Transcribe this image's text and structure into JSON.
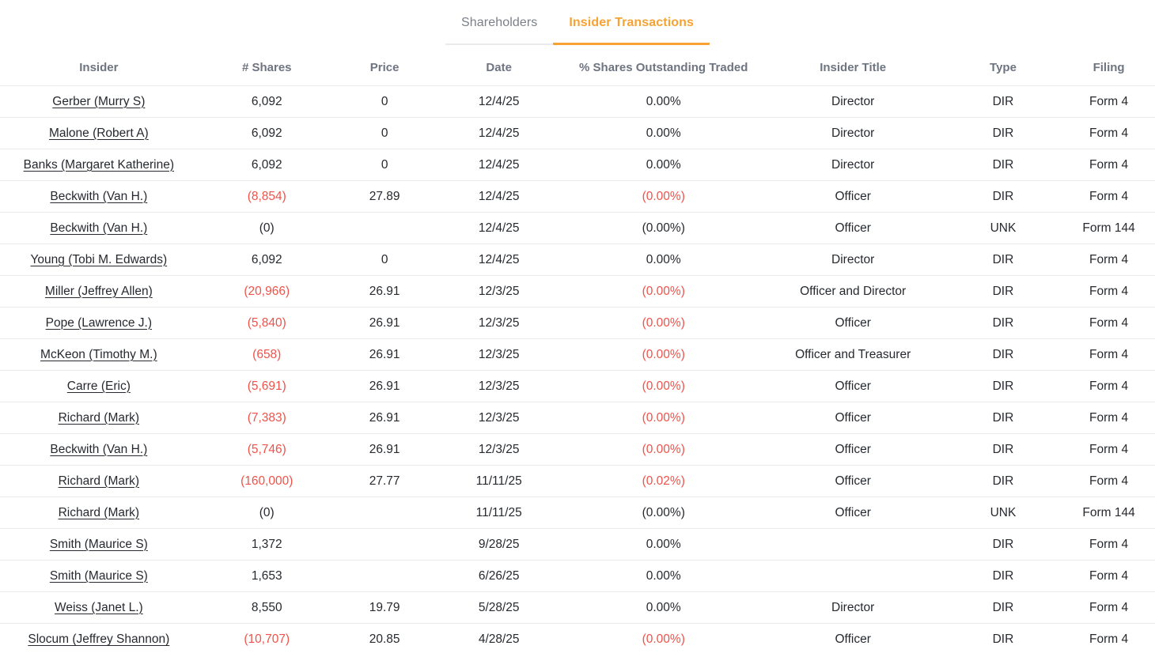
{
  "colors": {
    "accent": "#f7a233",
    "negative": "#f0524a",
    "text": "#26292e",
    "header_text": "#6e7480",
    "row_border": "#e9eaec"
  },
  "tabs": [
    {
      "label": "Shareholders",
      "active": false
    },
    {
      "label": "Insider Transactions",
      "active": true
    }
  ],
  "table": {
    "columns": [
      {
        "label": "Insider"
      },
      {
        "label": "# Shares"
      },
      {
        "label": "Price"
      },
      {
        "label": "Date"
      },
      {
        "label": "% Shares Outstanding Traded"
      },
      {
        "label": "Insider Title"
      },
      {
        "label": "Type"
      },
      {
        "label": "Filing"
      }
    ],
    "rows": [
      {
        "insider": "Gerber (Murry S)",
        "shares": "6,092",
        "price": "0",
        "date": "12/4/25",
        "pct": "0.00%",
        "title": "Director",
        "type": "DIR",
        "filing": "Form 4",
        "shares_neg": false,
        "pct_neg": false
      },
      {
        "insider": "Malone (Robert A)",
        "shares": "6,092",
        "price": "0",
        "date": "12/4/25",
        "pct": "0.00%",
        "title": "Director",
        "type": "DIR",
        "filing": "Form 4",
        "shares_neg": false,
        "pct_neg": false
      },
      {
        "insider": "Banks (Margaret Katherine)",
        "shares": "6,092",
        "price": "0",
        "date": "12/4/25",
        "pct": "0.00%",
        "title": "Director",
        "type": "DIR",
        "filing": "Form 4",
        "shares_neg": false,
        "pct_neg": false
      },
      {
        "insider": "Beckwith (Van H.)",
        "shares": "(8,854)",
        "price": "27.89",
        "date": "12/4/25",
        "pct": "(0.00%)",
        "title": "Officer",
        "type": "DIR",
        "filing": "Form 4",
        "shares_neg": true,
        "pct_neg": true
      },
      {
        "insider": "Beckwith (Van H.)",
        "shares": "(0)",
        "price": "",
        "date": "12/4/25",
        "pct": "(0.00%)",
        "title": "Officer",
        "type": "UNK",
        "filing": "Form 144",
        "shares_neg": false,
        "pct_neg": false
      },
      {
        "insider": "Young (Tobi M. Edwards)",
        "shares": "6,092",
        "price": "0",
        "date": "12/4/25",
        "pct": "0.00%",
        "title": "Director",
        "type": "DIR",
        "filing": "Form 4",
        "shares_neg": false,
        "pct_neg": false
      },
      {
        "insider": "Miller (Jeffrey Allen)",
        "shares": "(20,966)",
        "price": "26.91",
        "date": "12/3/25",
        "pct": "(0.00%)",
        "title": "Officer and Director",
        "type": "DIR",
        "filing": "Form 4",
        "shares_neg": true,
        "pct_neg": true
      },
      {
        "insider": "Pope (Lawrence J.)",
        "shares": "(5,840)",
        "price": "26.91",
        "date": "12/3/25",
        "pct": "(0.00%)",
        "title": "Officer",
        "type": "DIR",
        "filing": "Form 4",
        "shares_neg": true,
        "pct_neg": true
      },
      {
        "insider": "McKeon (Timothy M.)",
        "shares": "(658)",
        "price": "26.91",
        "date": "12/3/25",
        "pct": "(0.00%)",
        "title": "Officer and Treasurer",
        "type": "DIR",
        "filing": "Form 4",
        "shares_neg": true,
        "pct_neg": true
      },
      {
        "insider": "Carre (Eric)",
        "shares": "(5,691)",
        "price": "26.91",
        "date": "12/3/25",
        "pct": "(0.00%)",
        "title": "Officer",
        "type": "DIR",
        "filing": "Form 4",
        "shares_neg": true,
        "pct_neg": true
      },
      {
        "insider": "Richard (Mark)",
        "shares": "(7,383)",
        "price": "26.91",
        "date": "12/3/25",
        "pct": "(0.00%)",
        "title": "Officer",
        "type": "DIR",
        "filing": "Form 4",
        "shares_neg": true,
        "pct_neg": true
      },
      {
        "insider": "Beckwith (Van H.)",
        "shares": "(5,746)",
        "price": "26.91",
        "date": "12/3/25",
        "pct": "(0.00%)",
        "title": "Officer",
        "type": "DIR",
        "filing": "Form 4",
        "shares_neg": true,
        "pct_neg": true
      },
      {
        "insider": "Richard (Mark)",
        "shares": "(160,000)",
        "price": "27.77",
        "date": "11/11/25",
        "pct": "(0.02%)",
        "title": "Officer",
        "type": "DIR",
        "filing": "Form 4",
        "shares_neg": true,
        "pct_neg": true
      },
      {
        "insider": "Richard (Mark)",
        "shares": "(0)",
        "price": "",
        "date": "11/11/25",
        "pct": "(0.00%)",
        "title": "Officer",
        "type": "UNK",
        "filing": "Form 144",
        "shares_neg": false,
        "pct_neg": false
      },
      {
        "insider": "Smith (Maurice S)",
        "shares": "1,372",
        "price": "",
        "date": "9/28/25",
        "pct": "0.00%",
        "title": "",
        "type": "DIR",
        "filing": "Form 4",
        "shares_neg": false,
        "pct_neg": false
      },
      {
        "insider": "Smith (Maurice S)",
        "shares": "1,653",
        "price": "",
        "date": "6/26/25",
        "pct": "0.00%",
        "title": "",
        "type": "DIR",
        "filing": "Form 4",
        "shares_neg": false,
        "pct_neg": false
      },
      {
        "insider": "Weiss (Janet L.)",
        "shares": "8,550",
        "price": "19.79",
        "date": "5/28/25",
        "pct": "0.00%",
        "title": "Director",
        "type": "DIR",
        "filing": "Form 4",
        "shares_neg": false,
        "pct_neg": false
      },
      {
        "insider": "Slocum (Jeffrey Shannon)",
        "shares": "(10,707)",
        "price": "20.85",
        "date": "4/28/25",
        "pct": "(0.00%)",
        "title": "Officer",
        "type": "DIR",
        "filing": "Form 4",
        "shares_neg": true,
        "pct_neg": true
      }
    ]
  }
}
